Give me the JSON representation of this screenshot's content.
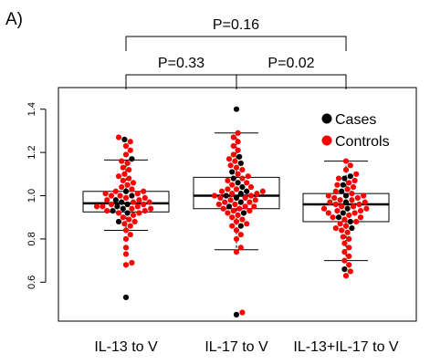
{
  "panel_label": "A)",
  "comparisons": [
    {
      "text": "P=0.16",
      "from": 0,
      "to": 2,
      "level": 2
    },
    {
      "text": "P=0.33",
      "from": 0,
      "to": 1,
      "level": 1
    },
    {
      "text": "P=0.02",
      "from": 1,
      "to": 2,
      "level": 1
    }
  ],
  "legend": [
    {
      "label": "Cases",
      "color": "#000000"
    },
    {
      "label": "Controls",
      "color": "#ff0000"
    }
  ],
  "chart_data": {
    "type": "box",
    "categories": [
      "IL-13 to V",
      "IL-17 to V",
      "IL-13+IL-17 to V"
    ],
    "ylim": [
      0.42,
      1.5
    ],
    "yticks": [
      0.6,
      0.8,
      1.0,
      1.2,
      1.4
    ],
    "ytick_labels": [
      "0.6",
      "0.8",
      "1.0",
      "1.2",
      "1.4"
    ],
    "boxes": [
      {
        "whisker_low": 0.84,
        "q1": 0.925,
        "median": 0.965,
        "q3": 1.02,
        "whisker_high": 1.165
      },
      {
        "whisker_low": 0.75,
        "q1": 0.94,
        "median": 1.0,
        "q3": 1.085,
        "whisker_high": 1.29
      },
      {
        "whisker_low": 0.7,
        "q1": 0.88,
        "median": 0.96,
        "q3": 1.01,
        "whisker_high": 1.16
      }
    ],
    "series": [
      {
        "name": "Cases",
        "color": "#000000",
        "groups": [
          [
            0.53,
            0.88,
            0.92,
            0.93,
            0.94,
            0.95,
            0.96,
            0.97,
            0.98,
            1.0,
            1.02,
            1.17,
            1.26
          ],
          [
            0.45,
            0.86,
            0.92,
            0.95,
            0.97,
            0.99,
            1.0,
            1.01,
            1.02,
            1.04,
            1.06,
            1.08,
            1.11,
            1.15,
            1.18,
            1.4
          ],
          [
            0.66,
            0.85,
            0.88,
            0.9,
            0.92,
            0.94,
            0.97,
            1.0,
            1.02,
            1.05,
            1.08,
            1.09
          ]
        ]
      },
      {
        "name": "Controls",
        "color": "#ff0000",
        "groups": [
          [
            0.68,
            0.69,
            0.73,
            0.76,
            0.8,
            0.82,
            0.84,
            0.86,
            0.87,
            0.88,
            0.89,
            0.9,
            0.91,
            0.92,
            0.92,
            0.93,
            0.93,
            0.94,
            0.94,
            0.95,
            0.95,
            0.95,
            0.96,
            0.96,
            0.97,
            0.97,
            0.98,
            0.98,
            0.99,
            0.99,
            1.0,
            1.0,
            1.01,
            1.01,
            1.02,
            1.02,
            1.03,
            1.04,
            1.05,
            1.06,
            1.07,
            1.08,
            1.09,
            1.1,
            1.12,
            1.13,
            1.15,
            1.16,
            1.19,
            1.21,
            1.23,
            1.25,
            1.27
          ],
          [
            0.46,
            0.74,
            0.76,
            0.8,
            0.82,
            0.84,
            0.86,
            0.87,
            0.88,
            0.89,
            0.9,
            0.91,
            0.92,
            0.93,
            0.93,
            0.94,
            0.94,
            0.95,
            0.95,
            0.96,
            0.96,
            0.97,
            0.97,
            0.98,
            0.98,
            0.99,
            0.99,
            1.0,
            1.0,
            1.01,
            1.01,
            1.02,
            1.02,
            1.03,
            1.03,
            1.04,
            1.05,
            1.06,
            1.07,
            1.08,
            1.09,
            1.1,
            1.12,
            1.13,
            1.14,
            1.16,
            1.17,
            1.19,
            1.21,
            1.23,
            1.25,
            1.27,
            1.29
          ],
          [
            0.63,
            0.65,
            0.68,
            0.7,
            0.72,
            0.74,
            0.76,
            0.78,
            0.8,
            0.81,
            0.83,
            0.84,
            0.85,
            0.86,
            0.87,
            0.88,
            0.89,
            0.9,
            0.9,
            0.91,
            0.92,
            0.92,
            0.93,
            0.93,
            0.94,
            0.94,
            0.95,
            0.95,
            0.96,
            0.96,
            0.97,
            0.97,
            0.98,
            0.98,
            0.99,
            0.99,
            1.0,
            1.0,
            1.01,
            1.02,
            1.03,
            1.04,
            1.05,
            1.06,
            1.07,
            1.08,
            1.1,
            1.12,
            1.14,
            1.16
          ]
        ]
      }
    ]
  }
}
